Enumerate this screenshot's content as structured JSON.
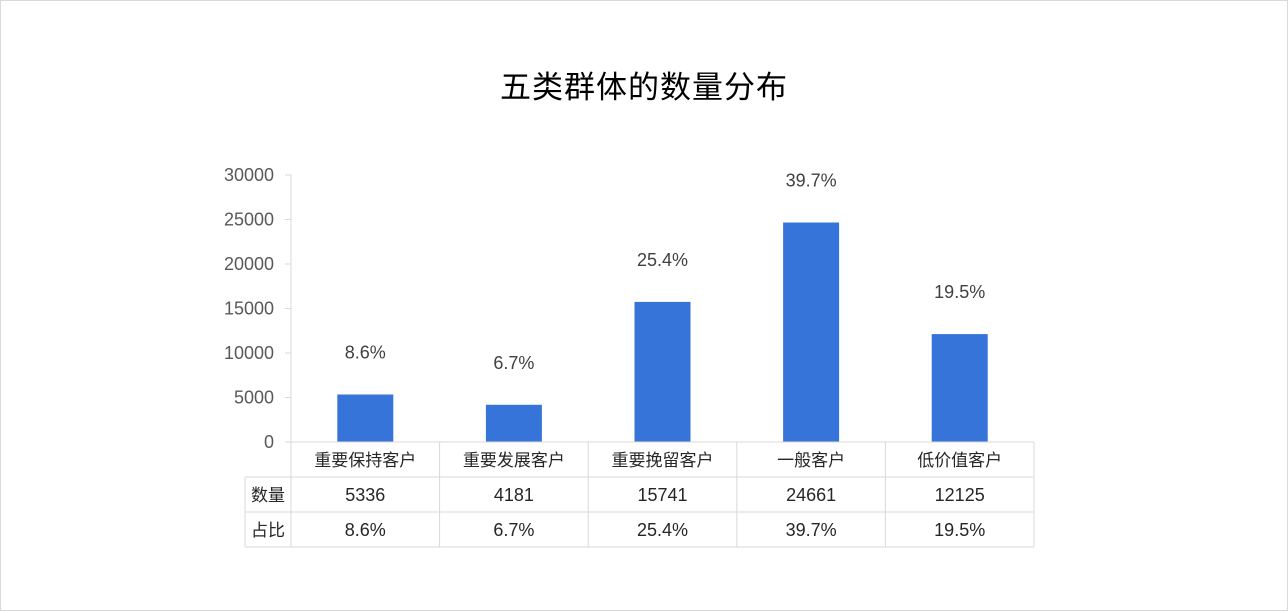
{
  "chart_data": {
    "type": "bar",
    "title": "五类群体的数量分布",
    "categories": [
      "重要保持客户",
      "重要发展客户",
      "重要挽留客户",
      "一般客户",
      "低价值客户"
    ],
    "series": [
      {
        "values": [
          5336,
          4181,
          15741,
          24661,
          12125
        ],
        "color": "#3674d9"
      }
    ],
    "data_labels": [
      "8.6%",
      "6.7%",
      "25.4%",
      "39.7%",
      "19.5%"
    ],
    "ylim": [
      0,
      30000
    ],
    "yticks": [
      0,
      5000,
      10000,
      15000,
      20000,
      25000,
      30000
    ],
    "ytick_labels": [
      "0",
      "5000",
      "10000",
      "15000",
      "20000",
      "25000",
      "30000"
    ],
    "grid": false,
    "data_table": {
      "rows": [
        {
          "label": "数量",
          "values": [
            "5336",
            "4181",
            "15741",
            "24661",
            "12125"
          ]
        },
        {
          "label": "占比",
          "values": [
            "8.6%",
            "6.7%",
            "25.4%",
            "39.7%",
            "19.5%"
          ]
        }
      ]
    }
  },
  "colors": {
    "bar": "#3674d9",
    "axis": "#d9d9d9"
  }
}
